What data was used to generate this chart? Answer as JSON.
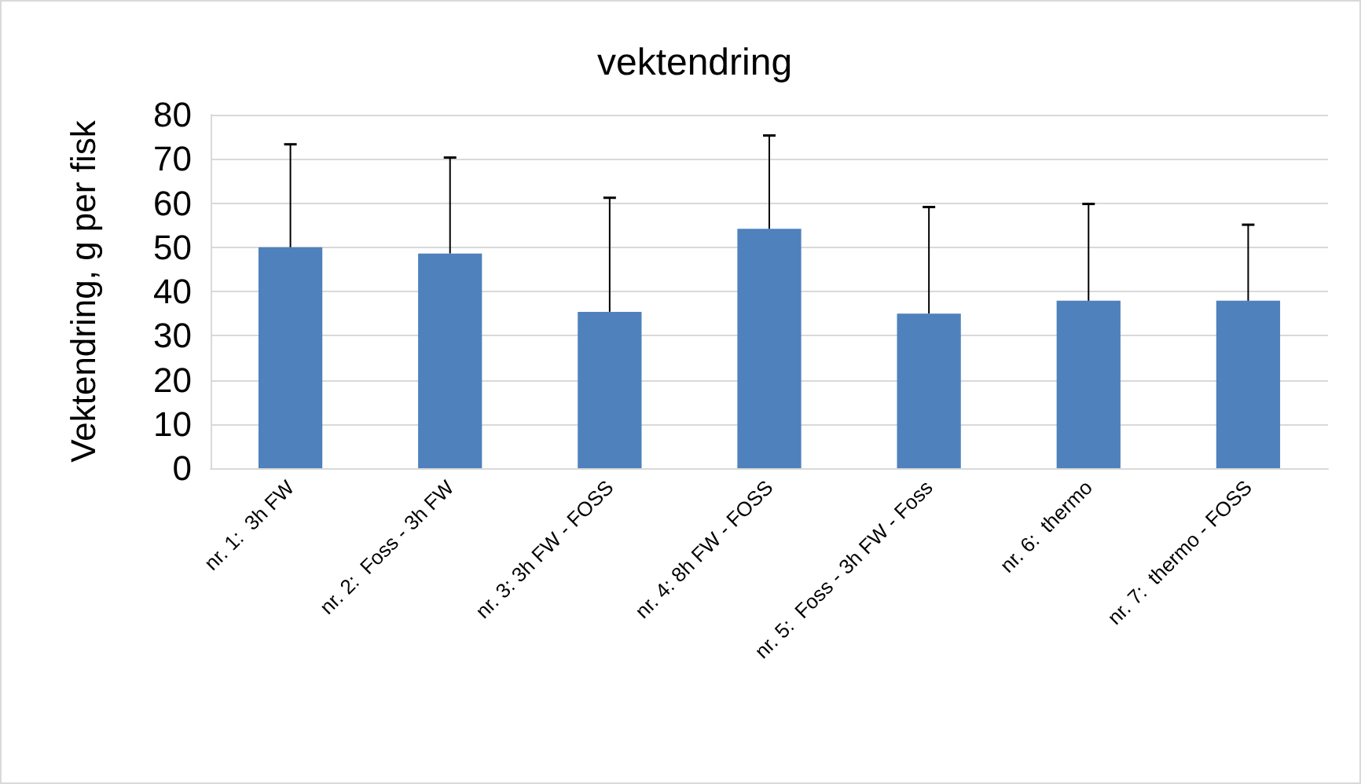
{
  "chart_data": {
    "type": "bar",
    "title": "vektendring",
    "ylabel": "Vektendring, g per fisk",
    "categories": [
      "nr. 1:  3h FW",
      "nr. 2:  Foss - 3h FW",
      "nr. 3: 3h FW - FOSS",
      "nr. 4: 8h FW - FOSS",
      "nr. 5:  Foss - 3h FW - Foss",
      "nr. 6:  thermo",
      "nr. 7:  thermo - FOSS"
    ],
    "values": [
      50.0,
      48.6,
      35.4,
      54.2,
      35.0,
      37.9,
      37.9
    ],
    "errors": [
      [
        50.0,
        73.3
      ],
      [
        48.6,
        70.3
      ],
      [
        35.4,
        61.2
      ],
      [
        54.2,
        75.3
      ],
      [
        35.0,
        59.1
      ],
      [
        37.9,
        59.8
      ],
      [
        37.9,
        55.1
      ]
    ],
    "color": "#4f81bd",
    "ylim": [
      0,
      80
    ],
    "yticks": [
      0,
      10,
      20,
      30,
      40,
      50,
      60,
      70,
      80
    ],
    "grid": "y"
  }
}
